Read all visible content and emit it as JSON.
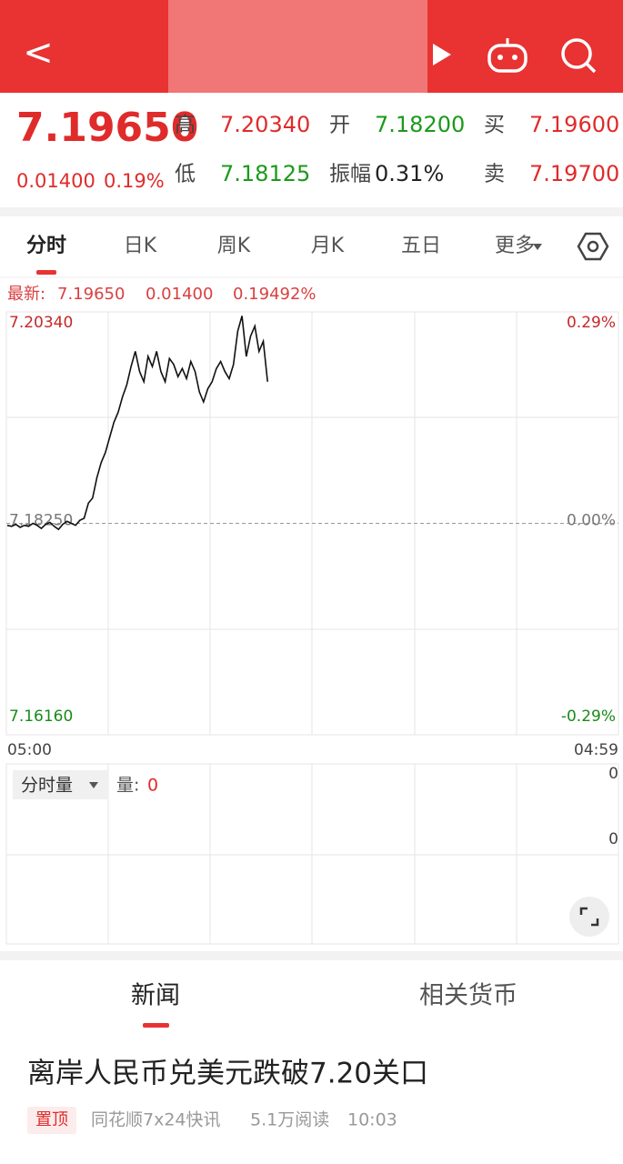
{
  "header": {
    "back": "<"
  },
  "quote": {
    "price": "7.19650",
    "change": "0.01400",
    "change_pct": "0.19%",
    "fields": [
      {
        "label": "高",
        "value": "7.20340"
      },
      {
        "label": "开",
        "value": "7.18200"
      },
      {
        "label": "买",
        "value": "7.19600"
      },
      {
        "label": "低",
        "value": "7.18125"
      },
      {
        "label": "振幅",
        "value": "0.31%"
      },
      {
        "label": "卖",
        "value": "7.19700"
      }
    ]
  },
  "tabs": [
    "分时",
    "日K",
    "周K",
    "月K",
    "五日",
    "更多"
  ],
  "latest": {
    "label": "最新:",
    "price": "7.19650",
    "change": "0.01400",
    "change_pct": "0.19492%"
  },
  "chart_data": {
    "type": "line",
    "color": "#111111",
    "ylim": [
      7.1616,
      7.2034
    ],
    "yticks": [
      {
        "value": 7.2034,
        "label": "7.20340"
      },
      {
        "value": 7.1825,
        "label": "7.18250"
      },
      {
        "value": 7.1616,
        "label": "7.16160"
      }
    ],
    "y2lim": [
      -0.29,
      0.29
    ],
    "y2ticks": [
      {
        "value": 0.29,
        "label": "0.29%"
      },
      {
        "value": 0,
        "label": "0.00%"
      },
      {
        "value": -0.29,
        "label": "-0.29%"
      }
    ],
    "x_start": "05:00",
    "x_end": "04:59",
    "values": [
      7.1823,
      7.1822,
      7.1824,
      7.1821,
      7.1823,
      7.1822,
      7.1825,
      7.1823,
      7.182,
      7.1824,
      7.1826,
      7.1822,
      7.1819,
      7.1824,
      7.1827,
      7.1825,
      7.1823,
      7.1828,
      7.183,
      7.1845,
      7.185,
      7.187,
      7.1885,
      7.1895,
      7.191,
      7.1925,
      7.1935,
      7.195,
      7.1962,
      7.198,
      7.1995,
      7.1975,
      7.1965,
      7.199,
      7.198,
      7.1995,
      7.1975,
      7.1965,
      7.1988,
      7.1982,
      7.197,
      7.1978,
      7.1968,
      7.1985,
      7.1975,
      7.1955,
      7.1945,
      7.1958,
      7.1965,
      7.1978,
      7.1985,
      7.1975,
      7.1968,
      7.1982,
      7.2015,
      7.203,
      7.199,
      7.201,
      7.202,
      7.1995,
      7.2005,
      7.1965,
      null,
      null,
      null,
      null,
      null,
      null,
      null,
      null,
      null,
      null,
      null,
      null,
      null,
      null,
      null,
      null,
      null,
      null,
      null,
      null,
      null,
      null,
      null,
      null,
      null,
      null,
      null,
      null,
      null,
      null,
      null,
      null,
      null,
      null,
      null,
      null,
      null,
      null,
      null,
      null,
      null,
      null,
      null,
      null,
      null,
      null,
      null,
      null,
      null,
      null,
      null,
      null,
      null,
      null,
      null,
      null,
      null,
      null,
      null,
      null,
      null,
      null,
      null,
      null,
      null,
      null,
      null,
      null,
      null,
      null,
      null,
      null,
      null,
      null,
      null,
      null,
      null,
      null,
      null,
      null,
      null,
      null
    ]
  },
  "volume": {
    "selector": "分时量",
    "label": "量:",
    "value": "0",
    "axis_top": "0",
    "axis_mid": "0"
  },
  "news_tabs": [
    "新闻",
    "相关货币"
  ],
  "news": {
    "headline": "离岸人民币兑美元跌破7.20关口",
    "tag": "置顶",
    "source": "同花顺7x24快讯",
    "reads": "5.1万阅读",
    "time": "10:03"
  }
}
